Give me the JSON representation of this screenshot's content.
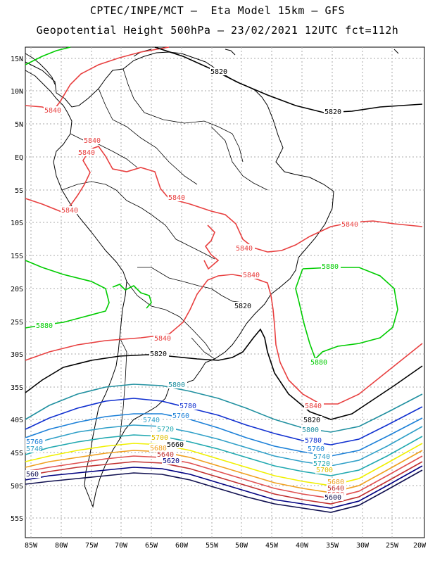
{
  "header": {
    "line1": "CPTEC/INPE/MCT –  Eta Model 15km – GFS",
    "line2": "Geopotential Height 500hPa – 23/02/2021 12UTC fct=112h"
  },
  "axes": {
    "lat_ticks": [
      "15N",
      "10N",
      "5N",
      "EQ",
      "5S",
      "10S",
      "15S",
      "20S",
      "25S",
      "30S",
      "35S",
      "40S",
      "45S",
      "50S",
      "55S"
    ],
    "lon_ticks": [
      "85W",
      "80W",
      "75W",
      "70W",
      "65W",
      "60W",
      "55W",
      "50W",
      "45W",
      "40W",
      "35W",
      "30W",
      "25W",
      "20W"
    ]
  },
  "colors": {
    "c5880": "#00cc00",
    "c5840": "#e84040",
    "c5820": "#000000",
    "c5800": "#2090a0",
    "c5780": "#1030d0",
    "c5760": "#1c80d8",
    "c5740": "#30a0c8",
    "c5720": "#20a8b0",
    "c5700": "#f0f000",
    "c5680": "#f0a020",
    "c5660": "#e05050",
    "c5640": "#c03030",
    "c5620": "#000080",
    "c5600": "#101050",
    "coast": "#000000",
    "grid": "#aaaaaa"
  },
  "labels": {
    "l5820a": "5820",
    "l5820b": "5820",
    "l5820c": "5820",
    "l5820d": "5820",
    "l5820e": "5820",
    "l5840a": "5840",
    "l5840b": "5840",
    "l5840c": "5840",
    "l5840d": "5840",
    "l5840e": "5840",
    "l5840f": "5840",
    "l5840g": "5840",
    "l5840h": "5840",
    "l5840i": "5840",
    "l5880a": "5880",
    "l5880b": "5880",
    "l5880c": "5880",
    "l5800a": "5800",
    "l5800b": "5800",
    "l5800c": "5800",
    "l5780a": "5780",
    "l5780b": "5780",
    "l5760a": "5760",
    "l5760b": "5760",
    "l5760c": "5760",
    "l5740a": "5740",
    "l5740b": "5740",
    "l5740c": "5740",
    "l5720a": "5720",
    "l5720b": "5720",
    "l5700a": "5700",
    "l5700b": "5700",
    "l5680a": "5680",
    "l5680b": "5680",
    "l5660a": "5660",
    "l5640a": "5640",
    "l5640b": "5640",
    "l5620a": "5620",
    "l5620b": "5620",
    "l5600a": "5600",
    "l5600b": "5600",
    "l560a": "560"
  }
}
